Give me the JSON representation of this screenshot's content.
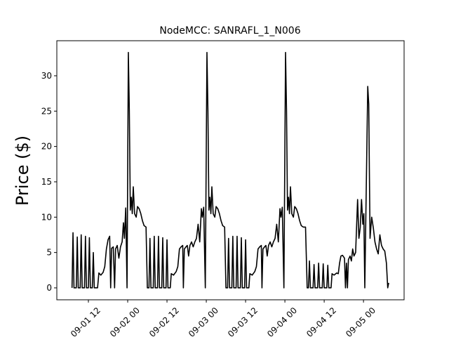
{
  "chart_data": {
    "type": "line",
    "title": "NodeMCC: SANRAFL_1_N006",
    "y_label": "Price ($)",
    "color": "#000000",
    "x": [
      7,
      7.3,
      7.6,
      8.3,
      8.6,
      8.9,
      9.5,
      9.8,
      10.1,
      10.8,
      11.1,
      11.4,
      12,
      12.3,
      12.6,
      13.2,
      13.5,
      13.8,
      14.8,
      15.2,
      15.8,
      16.5,
      17,
      17.5,
      18,
      18.5,
      18.8,
      19.1,
      19.6,
      20,
      20.3,
      20.8,
      21.3,
      21.8,
      22.3,
      22.7,
      23,
      23.4,
      23.8,
      24.2,
      24.5,
      24.8,
      25.1,
      25.4,
      25.7,
      26.1,
      26.6,
      27,
      27.5,
      28,
      28.5,
      29,
      29.6,
      30,
      30.5,
      30.8,
      31.1,
      31.8,
      32.1,
      32.4,
      33.1,
      33.4,
      33.7,
      34.4,
      34.7,
      35,
      35.7,
      36,
      36.3,
      37,
      37.3,
      38,
      38.8,
      39.3,
      39.8,
      40.3,
      40.8,
      41,
      41.3,
      41.8,
      42.2,
      42.6,
      43,
      43.5,
      44,
      44.5,
      45,
      45.5,
      46,
      46.5,
      46.8,
      47.2,
      47.7,
      48.2,
      48.5,
      48.8,
      49.1,
      49.4,
      49.7,
      50.1,
      50.6,
      51,
      51.5,
      52,
      52.5,
      53,
      53.6,
      54,
      54.5,
      54.8,
      55.1,
      55.8,
      56.1,
      56.4,
      57.1,
      57.4,
      57.7,
      58.4,
      58.7,
      59,
      59.7,
      60,
      60.3,
      61,
      61.3,
      62,
      62.8,
      63.3,
      63.8,
      64.3,
      64.8,
      65,
      65.3,
      65.8,
      66.2,
      66.6,
      67,
      67.5,
      68,
      68.5,
      69,
      69.5,
      70,
      70.5,
      70.8,
      71.2,
      71.7,
      72.2,
      72.5,
      72.8,
      73.1,
      73.4,
      73.7,
      74.1,
      74.6,
      75,
      75.5,
      76,
      76.5,
      77,
      77.6,
      78.3,
      78.8,
      79.2,
      79.5,
      79.8,
      80.6,
      80.9,
      81.2,
      82,
      82.3,
      82.6,
      83.4,
      83.7,
      84,
      84.8,
      85.1,
      85.4,
      86.1,
      86.4,
      87,
      87.8,
      88.3,
      88.7,
      89.1,
      89.6,
      90.2,
      90.5,
      90.8,
      91.1,
      91.4,
      91.9,
      92.3,
      92.7,
      93.1,
      93.6,
      94.2,
      94.6,
      95,
      95.4,
      95.8,
      96.1,
      96.4,
      97.3,
      97.6,
      98,
      98.5,
      99,
      99.5,
      100,
      100.5,
      101,
      101.5,
      102,
      102.5,
      103,
      103.4,
      103.7
    ],
    "values": [
      0,
      7.8,
      0,
      0,
      7.2,
      0,
      0,
      7.5,
      0,
      0,
      7.3,
      0,
      0,
      7.1,
      0,
      0,
      5,
      0,
      0,
      2.1,
      1.8,
      2.2,
      3,
      5.5,
      6.8,
      7.3,
      0,
      5.6,
      5.8,
      0,
      5.5,
      6,
      4.2,
      5.8,
      6.5,
      9.2,
      7,
      11.3,
      0,
      33.3,
      25,
      11,
      12.8,
      10.5,
      14.3,
      10.5,
      10,
      11.5,
      11.2,
      10.5,
      9.5,
      8.8,
      8.6,
      0,
      0,
      7,
      0,
      0,
      7.3,
      0,
      0,
      7.3,
      0,
      0,
      7.1,
      0,
      0,
      6.8,
      0,
      0,
      2,
      1.8,
      2.3,
      3,
      5.5,
      5.8,
      6,
      0,
      5.5,
      5.8,
      6,
      4.5,
      6,
      6.5,
      5.8,
      6.5,
      7,
      9,
      6.5,
      11.2,
      10,
      11.4,
      0,
      33.3,
      25,
      11,
      12.8,
      10.5,
      14.3,
      10.5,
      10,
      11.5,
      11.2,
      10.5,
      9.5,
      8.8,
      8.6,
      0,
      0,
      7,
      0,
      0,
      7.3,
      0,
      0,
      7.3,
      0,
      0,
      7.1,
      0,
      0,
      6.8,
      0,
      0,
      2,
      1.8,
      2.3,
      3,
      5.5,
      5.8,
      6,
      0,
      5.5,
      5.8,
      6,
      4.5,
      6,
      6.5,
      5.8,
      6.5,
      7,
      9,
      6.5,
      11.2,
      10,
      11.4,
      0,
      33.3,
      25,
      11,
      12.8,
      10.5,
      14.3,
      10.5,
      10,
      11.5,
      11.2,
      10.5,
      9.5,
      8.8,
      8.6,
      8.6,
      0,
      0,
      3.8,
      0,
      0,
      3.3,
      0,
      0,
      3.5,
      0,
      0,
      3.4,
      0,
      0,
      3.2,
      0,
      0,
      2,
      1.8,
      2.1,
      2,
      3.5,
      4.5,
      4.6,
      4.2,
      0,
      3.5,
      0,
      4,
      4.5,
      3.8,
      5.5,
      4.5,
      5,
      12.5,
      7,
      8.5,
      12.5,
      9,
      10.5,
      0,
      28.5,
      26,
      7,
      10,
      8.5,
      6.5,
      5.5,
      4.8,
      7.5,
      6,
      5.5,
      5.2,
      3.5,
      0,
      0.7
    ],
    "xlim": [
      2.36,
      108.4
    ],
    "ylim": [
      -1.69,
      34.96
    ],
    "xticks": [
      {
        "value": 12,
        "label": "09-01 12"
      },
      {
        "value": 24,
        "label": "09-02 00"
      },
      {
        "value": 36,
        "label": "09-02 12"
      },
      {
        "value": 48,
        "label": "09-03 00"
      },
      {
        "value": 60,
        "label": "09-03 12"
      },
      {
        "value": 72,
        "label": "09-04 00"
      },
      {
        "value": 84,
        "label": "09-04 12"
      },
      {
        "value": 96,
        "label": "09-05 00"
      }
    ],
    "yticks": [
      0,
      5,
      10,
      15,
      20,
      25,
      30
    ],
    "grid": false
  }
}
